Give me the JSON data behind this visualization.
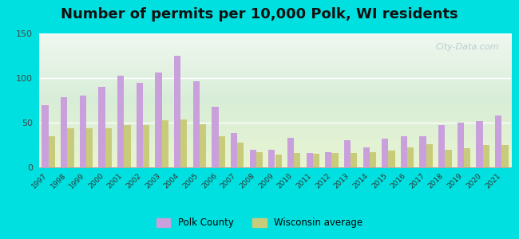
{
  "title": "Number of permits per 10,000 Polk, WI residents",
  "years": [
    1997,
    1998,
    1999,
    2000,
    2001,
    2002,
    2003,
    2004,
    2005,
    2006,
    2007,
    2008,
    2009,
    2010,
    2011,
    2012,
    2013,
    2014,
    2015,
    2016,
    2017,
    2018,
    2019,
    2020,
    2021
  ],
  "polk": [
    70,
    79,
    80,
    90,
    103,
    95,
    106,
    125,
    96,
    68,
    38,
    20,
    20,
    33,
    16,
    17,
    30,
    22,
    32,
    35,
    35,
    47,
    50,
    52,
    58
  ],
  "wi_avg": [
    35,
    44,
    44,
    44,
    47,
    47,
    53,
    54,
    48,
    35,
    28,
    17,
    14,
    16,
    15,
    16,
    16,
    17,
    19,
    22,
    26,
    20,
    21,
    25,
    25
  ],
  "polk_color": "#c9a0dc",
  "wi_color": "#c8cc7a",
  "outer_background": "#00e0e0",
  "ylim": [
    0,
    150
  ],
  "yticks": [
    0,
    50,
    100,
    150
  ],
  "title_fontsize": 13,
  "legend_polk": "Polk County",
  "legend_wi": "Wisconsin average"
}
